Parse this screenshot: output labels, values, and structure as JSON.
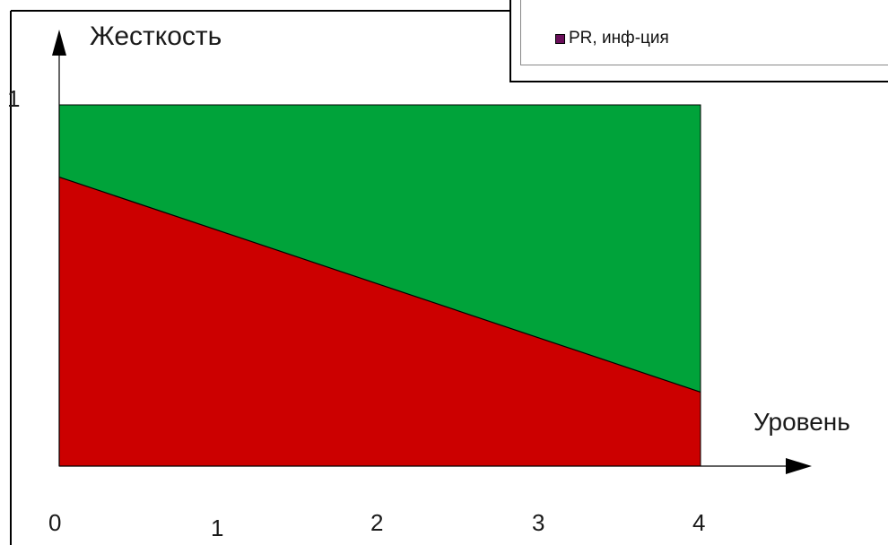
{
  "chart_data": {
    "type": "area",
    "ylabel": "Жесткость",
    "xlabel": "Уровень",
    "x_ticks": [
      "0",
      "1",
      "2",
      "3",
      "4"
    ],
    "y_ticks": [
      "1"
    ],
    "xlim": [
      0,
      4
    ],
    "ylim": [
      0,
      1
    ],
    "boundary_line": {
      "x": [
        0,
        4
      ],
      "y": [
        0.8,
        0.205
      ]
    },
    "regions": [
      {
        "position": "below-line",
        "color": "#cc0000"
      },
      {
        "position": "above-line",
        "color": "#00a33a"
      }
    ],
    "legend": {
      "placement": "top-right",
      "entries": [
        {
          "label": "PR, инф-ция",
          "color": "#6a0f5a"
        }
      ]
    },
    "grid": false
  }
}
